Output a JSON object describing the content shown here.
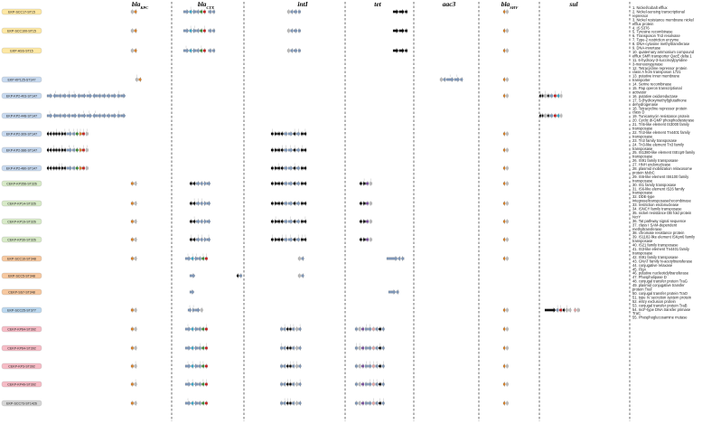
{
  "columns": [
    {
      "id": "blaKPC",
      "label": "bla",
      "sub": "KPC"
    },
    {
      "id": "blaCTX",
      "label": "bla",
      "sub": "CTX"
    },
    {
      "id": "intI",
      "label": "intI",
      "sub": ""
    },
    {
      "id": "tet",
      "label": "tet",
      "sub": ""
    },
    {
      "id": "aac3",
      "label": "aac3",
      "sub": ""
    },
    {
      "id": "blaSHV",
      "label": "bla",
      "sub": "SHV"
    },
    {
      "id": "sul",
      "label": "sul",
      "sub": ""
    }
  ],
  "rows": [
    {
      "label": "EKP-SCC17-ST15",
      "color": "#fde7a4",
      "group": 1
    },
    {
      "label": "EKP-SCC100-ST15",
      "color": "#fde7a4",
      "group": 1
    },
    {
      "label": "EKP-ASS-ST15",
      "color": "#fde7a4",
      "group": 1
    },
    {
      "label": "EKP-KP125-ST147",
      "color": "#c7d9ef",
      "group": 2
    },
    {
      "label": "EKP-KP2-403-ST147",
      "color": "#c7d9ef",
      "group": 2
    },
    {
      "label": "EKP-KP2-448-ST147",
      "color": "#c7d9ef",
      "group": 2
    },
    {
      "label": "EKP-KP2-309-ST147",
      "color": "#c7d9ef",
      "group": 2
    },
    {
      "label": "EKP-KP2-386-ST147",
      "color": "#c7d9ef",
      "group": 2
    },
    {
      "label": "EKP-KP2-480-ST147",
      "color": "#c7d9ef",
      "group": 2
    },
    {
      "label": "CEKP-KP356-ST326",
      "color": "#d7eac7",
      "group": 3
    },
    {
      "label": "CEKP-KP14-ST326",
      "color": "#d7eac7",
      "group": 3
    },
    {
      "label": "CEKP-KP19-ST326",
      "color": "#d7eac7",
      "group": 3
    },
    {
      "label": "CEKP-KP30-ST326",
      "color": "#d7eac7",
      "group": 3
    },
    {
      "label": "EKP-SCC10-ST348",
      "color": "#f6c8a0",
      "group": 4
    },
    {
      "label": "EKP-SCC5-ST348",
      "color": "#f6c8a0",
      "group": 4
    },
    {
      "label": "CEKP-SS7-ST348",
      "color": "#f6c8a0",
      "group": 4
    },
    {
      "label": "EKP-SCC25-ST377",
      "color": "#bcd8ef",
      "group": 5
    },
    {
      "label": "CEKP-KP64-ST392",
      "color": "#f6bcc6",
      "group": 6
    },
    {
      "label": "CEKP-KP64-ST392",
      "color": "#f6bcc6",
      "group": 6
    },
    {
      "label": "CEKP-KP3-ST392",
      "color": "#f6bcc6",
      "group": 6
    },
    {
      "label": "CEKP-KP49-ST392",
      "color": "#f6bcc6",
      "group": 6
    },
    {
      "label": "EKP-SCC73-ST1426",
      "color": "#d6d6d6",
      "group": 7
    }
  ],
  "legend": [
    "1. Nickel/cobalt efflux",
    "2. Nickel-sensing transcriptional repressor",
    "3. Nickel resistance membrane nickel efflux protein",
    "4. IS 5376",
    "5. Tyrosine recombinase",
    "6. Transposon Tn3 resolvase",
    "7. Type-2 restriction enzyme",
    "8. DNA-cytosine methyltransferase",
    "9. DNA-invertase",
    "10. quaternary ammonium compound efflux SMR transporter QacE delta 1",
    "11. 6-hydroxy-3-succinoylpyridine 3-monooxygenase",
    "12. Tetracycline repressor protein class A from transposon 1721",
    "13. putative inner membrane transporter",
    "14. Serine recombinase",
    "15. Pap operon transcriptional activator",
    "16. putative oxidoreductase",
    "17. S-(hydroxymethyl)glutathione dehydrogenase",
    "18. Tetracycline repressor protein class D",
    "19. Tunicamycin resistance protein",
    "20. Cyclic di-GMP phosphodiesterase",
    "21. Tn5-like element IS3000 family transposase",
    "22. Tn3-like element Tn4401 family transposase",
    "23. Tn3 family transposase",
    "24. Tn3-like element Tn3 family transposase",
    "25. IS1380-like element ISEcp9 family transposase",
    "26. IS91 family transposase",
    "27. HNH endonuclease",
    "28. plasmid mobilization relaxosome protein MobC",
    "29. IS6-like element IS6100 family transposase",
    "30. IS1 family transposase",
    "31. IS6-like element IS26 family transposase",
    "32. DDE-type integrase/transposase/recombinase",
    "33. restriction endonuclease",
    "34. ISNCY family transposase",
    "35. nickel resistance DB fold protein NcrY",
    "36. Tat pathway signal sequence",
    "37. class I SAM-dependent methyltransferase",
    "38. chromate resistance protein",
    "39. IS1182-like element ISKpn6 family transposase",
    "40. IS21 family transposase",
    "41. IS3-like element Tn4401 family transposase",
    "42. IS91 family transposase",
    "43. GNAT family N-acetyltransferase",
    "44. conjugative relaxase",
    "45. FlgA",
    "46. putative nucleotidyltransferase",
    "47. Phospholipase D",
    "48. conjugal transfer protein TraG",
    "49. plasmid conjugative transfer protein TraF",
    "50. conjugal transfer protein TraO",
    "51. type IV secretion system protein",
    "52. entry exclusion protein",
    "53. conjugal transfer protein TraB",
    "54. IncF-type DNA transfer primase TraC",
    "55. Phosphoglucosamine mutase"
  ],
  "palette": {
    "gene": "#7f97b8",
    "black": "#111111",
    "green": "#3e8f3a",
    "red": "#cc2222",
    "orange": "#d9822b",
    "purple": "#7b4ea0",
    "pink": "#e8a7a7",
    "grey": "#bbbbbb",
    "cyan": "#39a7c9"
  }
}
